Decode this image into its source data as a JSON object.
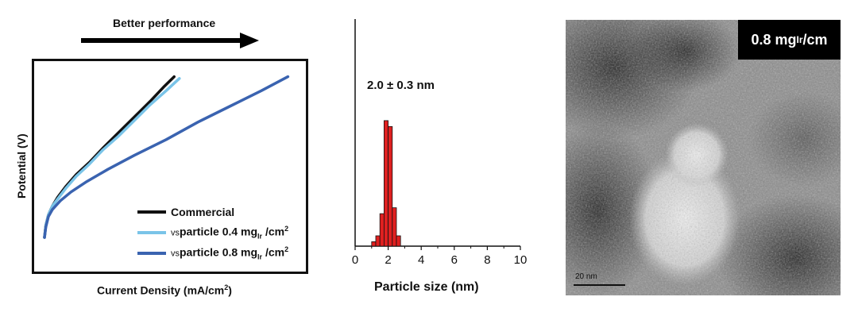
{
  "panel_a": {
    "arrow_title": "Better performance",
    "ylabel": "Potential (V)",
    "xlabel_pre": "Current Density (mA/cm",
    "xlabel_sup": "2",
    "xlabel_post": ")",
    "legend": [
      {
        "label": "Commercial",
        "color": "#111111"
      },
      {
        "vs": "vs",
        "label_pre": "particle 0.4 mg",
        "sub": "Ir",
        "label_mid": " /cm",
        "sup": "2",
        "color": "#7ac4e8"
      },
      {
        "vs": "vs",
        "label_pre": "particle 0.8 mg",
        "sub": "Ir",
        "label_mid": " /cm",
        "sup": "2",
        "color": "#3a63b0"
      }
    ]
  },
  "chart_data": [
    {
      "type": "line",
      "title": "",
      "xlabel": "Current Density (mA/cm2)",
      "ylabel": "Potential (V)",
      "axes_ticks": "none",
      "series": [
        {
          "name": "Commercial",
          "color": "#111111",
          "x": [
            0,
            0.5,
            1.5,
            3,
            5,
            8,
            12,
            17,
            22,
            28,
            34,
            40,
            45,
            49
          ],
          "y": [
            0,
            0.07,
            0.13,
            0.18,
            0.23,
            0.29,
            0.36,
            0.43,
            0.51,
            0.6,
            0.69,
            0.78,
            0.86,
            0.92
          ]
        },
        {
          "name": "particle 0.4 mgIr /cm2",
          "color": "#7ac4e8",
          "x": [
            0,
            0.5,
            1.5,
            3,
            5,
            8,
            12,
            17,
            22,
            28,
            34,
            40,
            46,
            51
          ],
          "y": [
            0,
            0.07,
            0.13,
            0.18,
            0.22,
            0.28,
            0.35,
            0.42,
            0.5,
            0.58,
            0.67,
            0.76,
            0.84,
            0.91
          ]
        },
        {
          "name": "particle 0.8 mgIr /cm2",
          "color": "#3a63b0",
          "x": [
            0,
            0.5,
            1.5,
            3,
            6,
            10,
            16,
            24,
            34,
            46,
            58,
            70,
            82,
            92
          ],
          "y": [
            0,
            0.06,
            0.12,
            0.16,
            0.21,
            0.26,
            0.32,
            0.39,
            0.47,
            0.56,
            0.66,
            0.75,
            0.84,
            0.92
          ]
        }
      ]
    },
    {
      "type": "bar",
      "title": "",
      "annotation": "2.0 ± 0.3 nm",
      "xlabel": "Particle size (nm)",
      "ylabel": "",
      "xlim": [
        0,
        10
      ],
      "xticks": [
        "0",
        "2",
        "4",
        "6",
        "8",
        "10"
      ],
      "bar_color": "#e02020",
      "bin_centers": [
        1.125,
        1.375,
        1.625,
        1.875,
        2.125,
        2.375,
        2.625
      ],
      "bin_width": 0.25,
      "values": [
        0.03,
        0.07,
        0.22,
        0.85,
        0.81,
        0.26,
        0.07
      ]
    }
  ],
  "panel_c": {
    "badge_pre": "0.8 mg",
    "badge_sub": "Ir",
    "badge_post": "/cm",
    "scale_label": "20 nm"
  }
}
